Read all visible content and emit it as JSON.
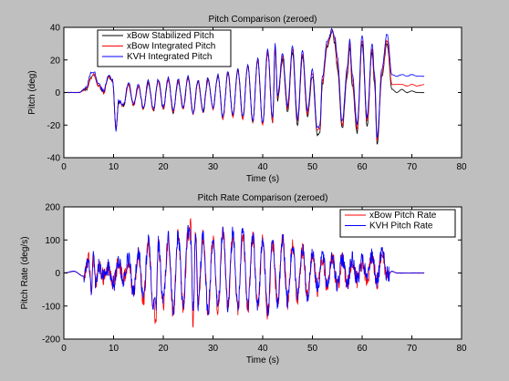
{
  "chart_data": [
    {
      "type": "line",
      "title": "Pitch Comparison (zeroed)",
      "xlabel": "Time (s)",
      "ylabel": "Pitch (deg)",
      "xlim": [
        0,
        80
      ],
      "ylim": [
        -40,
        40
      ],
      "xticks": [
        0,
        10,
        20,
        30,
        40,
        50,
        60,
        70,
        80
      ],
      "yticks": [
        -40,
        -20,
        0,
        20,
        40
      ],
      "grid": false,
      "legend_position": "top-left",
      "series": [
        {
          "name": "xBow Stabilized Pitch",
          "color": "#000000",
          "x": [
            0,
            3,
            4.5,
            5.5,
            6,
            7,
            8,
            9,
            9.8,
            10.5,
            11,
            12,
            13,
            14,
            15,
            16,
            17,
            18,
            19,
            20,
            21,
            22,
            23,
            24,
            25,
            26,
            27,
            28,
            29,
            30,
            31,
            32,
            33,
            34,
            35,
            36,
            37,
            38,
            39,
            40,
            41,
            42,
            42.5,
            43,
            44,
            45,
            46,
            47,
            48,
            49,
            50,
            51,
            51.5,
            52,
            53,
            54,
            54.5,
            55,
            56,
            57,
            57.5,
            58,
            59,
            60,
            61,
            62,
            62.5,
            63,
            64,
            65,
            66,
            67,
            68,
            69,
            70,
            71,
            72.5
          ],
          "y": [
            0,
            0,
            2,
            9,
            11,
            4,
            0,
            10,
            7,
            -22,
            -6,
            -8,
            5,
            -8,
            4,
            -10,
            6,
            -11,
            7,
            -10,
            8,
            -12,
            7,
            -10,
            9,
            -13,
            7,
            -12,
            8,
            -10,
            10,
            -16,
            12,
            -15,
            14,
            -16,
            16,
            -18,
            20,
            -20,
            25,
            -18,
            28,
            -5,
            20,
            -12,
            25,
            -20,
            22,
            -15,
            10,
            -26,
            -24,
            5,
            28,
            38,
            30,
            15,
            -22,
            10,
            28,
            5,
            -25,
            30,
            -20,
            25,
            5,
            -32,
            10,
            30,
            2,
            0,
            2,
            0,
            1,
            0,
            0
          ]
        },
        {
          "name": "xBow Integrated Pitch",
          "color": "#ff0000",
          "x": [
            0,
            3,
            4.5,
            5.5,
            6,
            7,
            8,
            9,
            9.8,
            10.5,
            11,
            12,
            13,
            14,
            15,
            16,
            17,
            18,
            19,
            20,
            21,
            22,
            23,
            24,
            25,
            26,
            27,
            28,
            29,
            30,
            31,
            32,
            33,
            34,
            35,
            36,
            37,
            38,
            39,
            40,
            41,
            42,
            42.5,
            43,
            44,
            45,
            46,
            47,
            48,
            49,
            50,
            51,
            51.5,
            52,
            53,
            54,
            54.5,
            55,
            56,
            57,
            57.5,
            58,
            59,
            60,
            61,
            62,
            62.5,
            63,
            64,
            65,
            66,
            67,
            68,
            69,
            70,
            71,
            72.5
          ],
          "y": [
            0,
            0,
            2,
            9,
            11,
            4,
            0,
            10,
            7,
            -22,
            -6,
            -8,
            5,
            -8,
            4,
            -10,
            6,
            -11,
            7,
            -10,
            8,
            -12,
            7,
            -10,
            9,
            -13,
            7,
            -12,
            8,
            -10,
            10,
            -16,
            12,
            -15,
            14,
            -16,
            16,
            -18,
            20,
            -20,
            25,
            -18,
            28,
            -4,
            22,
            -10,
            26,
            -18,
            24,
            -13,
            12,
            -24,
            -22,
            7,
            30,
            38,
            32,
            18,
            -20,
            12,
            30,
            8,
            -22,
            32,
            -18,
            27,
            8,
            -30,
            12,
            32,
            5,
            5,
            5,
            4,
            5,
            4,
            5
          ]
        },
        {
          "name": "KVH Integrated Pitch",
          "color": "#0000ff",
          "x": [
            0,
            3,
            4.5,
            5.5,
            6,
            7,
            8,
            9,
            9.8,
            10.5,
            11,
            12,
            13,
            14,
            15,
            16,
            17,
            18,
            19,
            20,
            21,
            22,
            23,
            24,
            25,
            26,
            27,
            28,
            29,
            30,
            31,
            32,
            33,
            34,
            35,
            36,
            37,
            38,
            39,
            40,
            41,
            42,
            42.5,
            43,
            44,
            45,
            46,
            47,
            48,
            49,
            50,
            51,
            51.5,
            52,
            53,
            54,
            54.5,
            55,
            56,
            57,
            57.5,
            58,
            59,
            60,
            61,
            62,
            62.5,
            63,
            64,
            65,
            66,
            67,
            68,
            69,
            70,
            71,
            72.5
          ],
          "y": [
            0,
            0,
            3,
            12,
            13,
            5,
            1,
            11,
            8,
            -23,
            -5,
            -7,
            6,
            -7,
            5,
            -9,
            7,
            -10,
            8,
            -9,
            9,
            -11,
            8,
            -9,
            10,
            -12,
            8,
            -11,
            9,
            -9,
            11,
            -15,
            13,
            -14,
            15,
            -15,
            17,
            -17,
            21,
            -19,
            27,
            -16,
            30,
            -2,
            24,
            -8,
            28,
            -16,
            26,
            -11,
            14,
            -22,
            -20,
            10,
            32,
            39,
            34,
            22,
            -18,
            15,
            33,
            12,
            -20,
            35,
            -15,
            30,
            12,
            -28,
            15,
            36,
            11,
            10,
            11,
            10,
            11,
            10,
            10
          ]
        }
      ]
    },
    {
      "type": "line",
      "title": "Pitch Rate Comparison (zeroed)",
      "xlabel": "Time (s)",
      "ylabel": "Pitch Rate (deg/s)",
      "xlim": [
        0,
        80
      ],
      "ylim": [
        -200,
        200
      ],
      "xticks": [
        0,
        10,
        20,
        30,
        40,
        50,
        60,
        70,
        80
      ],
      "yticks": [
        -200,
        -100,
        0,
        100,
        200
      ],
      "grid": false,
      "legend_position": "top-right",
      "series": [
        {
          "name": "xBow Pitch Rate",
          "color": "#ff0000",
          "x": [
            0,
            2,
            4,
            5,
            5.5,
            6,
            6.5,
            7,
            8,
            9,
            10,
            11,
            12,
            13,
            14,
            15,
            16,
            17,
            18,
            18.5,
            19,
            20,
            21,
            22,
            23,
            24,
            25,
            25.5,
            26,
            26.5,
            27,
            28,
            29,
            30,
            31,
            32,
            33,
            34,
            35,
            36,
            37,
            38,
            39,
            40,
            41,
            42,
            43,
            44,
            45,
            46,
            47,
            48,
            49,
            50,
            51,
            52,
            53,
            54,
            55,
            56,
            57,
            58,
            59,
            60,
            61,
            62,
            63,
            64,
            65,
            66,
            67,
            68,
            69,
            70,
            71,
            72.5
          ],
          "y": [
            0,
            5,
            -10,
            40,
            -45,
            45,
            -35,
            20,
            -10,
            15,
            -30,
            35,
            -20,
            40,
            -60,
            60,
            -80,
            90,
            -100,
            -135,
            85,
            -90,
            100,
            -120,
            110,
            -100,
            120,
            145,
            -155,
            130,
            -100,
            110,
            -120,
            100,
            -110,
            120,
            -100,
            115,
            -110,
            120,
            -105,
            110,
            -100,
            95,
            -120,
            90,
            -95,
            100,
            -90,
            85,
            -75,
            70,
            -80,
            60,
            -50,
            50,
            -40,
            50,
            -45,
            40,
            -30,
            35,
            -25,
            30,
            -20,
            50,
            -30,
            55,
            -10,
            5,
            0,
            0,
            0,
            0,
            0,
            0
          ]
        },
        {
          "name": "KVH Pitch Rate",
          "color": "#0000ff",
          "x": [
            0,
            2,
            4,
            5,
            5.5,
            6,
            6.5,
            7,
            8,
            9,
            10,
            11,
            12,
            13,
            14,
            15,
            16,
            17,
            18,
            18.5,
            19,
            20,
            21,
            22,
            23,
            24,
            25,
            25.5,
            26,
            26.5,
            27,
            28,
            29,
            30,
            31,
            32,
            33,
            34,
            35,
            36,
            37,
            38,
            39,
            40,
            41,
            42,
            43,
            44,
            45,
            46,
            47,
            48,
            49,
            50,
            51,
            52,
            53,
            54,
            55,
            56,
            57,
            58,
            59,
            60,
            61,
            62,
            63,
            64,
            65,
            66,
            67,
            68,
            69,
            70,
            71,
            72.5
          ],
          "y": [
            0,
            5,
            -10,
            45,
            -50,
            48,
            -40,
            25,
            -12,
            18,
            -35,
            40,
            -25,
            45,
            -55,
            65,
            -75,
            95,
            -90,
            -100,
            90,
            -85,
            105,
            -110,
            115,
            -95,
            125,
            110,
            -120,
            125,
            -95,
            115,
            -115,
            105,
            -105,
            125,
            -95,
            120,
            -105,
            125,
            -100,
            115,
            -95,
            100,
            -115,
            95,
            -90,
            105,
            -85,
            90,
            -70,
            75,
            -75,
            65,
            -45,
            55,
            -35,
            55,
            -40,
            45,
            -25,
            40,
            -20,
            35,
            -15,
            55,
            -25,
            60,
            -5,
            5,
            0,
            0,
            0,
            0,
            0,
            0
          ]
        }
      ]
    }
  ]
}
